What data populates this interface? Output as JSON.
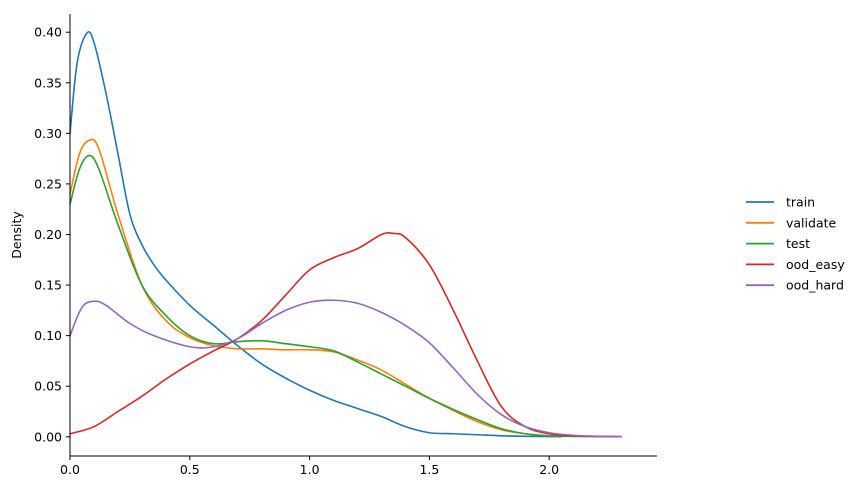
{
  "chart_data": {
    "type": "line",
    "title": "",
    "xlabel": "",
    "ylabel": "Density",
    "xlim": [
      0,
      2.45
    ],
    "ylim": [
      -0.019,
      0.418
    ],
    "xticks": [
      0.0,
      0.5,
      1.0,
      1.5,
      2.0
    ],
    "xtick_labels": [
      "0.0",
      "0.5",
      "1.0",
      "1.5",
      "2.0"
    ],
    "yticks": [
      0.0,
      0.05,
      0.1,
      0.15,
      0.2,
      0.25,
      0.3,
      0.35,
      0.4
    ],
    "ytick_labels": [
      "0.00",
      "0.05",
      "0.10",
      "0.15",
      "0.20",
      "0.25",
      "0.30",
      "0.35",
      "0.40"
    ],
    "grid": false,
    "legend_position": "right",
    "series": [
      {
        "name": "train",
        "color": "#1f77b4",
        "x": [
          0.0,
          0.03,
          0.07,
          0.1,
          0.15,
          0.2,
          0.25,
          0.3,
          0.35,
          0.4,
          0.5,
          0.6,
          0.7,
          0.8,
          0.9,
          1.0,
          1.1,
          1.2,
          1.3,
          1.4,
          1.5,
          1.6,
          1.7,
          1.8,
          1.9,
          2.0,
          2.05
        ],
        "y": [
          0.3,
          0.37,
          0.399,
          0.39,
          0.34,
          0.28,
          0.22,
          0.19,
          0.17,
          0.155,
          0.13,
          0.11,
          0.09,
          0.072,
          0.058,
          0.046,
          0.036,
          0.028,
          0.02,
          0.01,
          0.004,
          0.003,
          0.002,
          0.001,
          0.0005,
          0.0002,
          0.0001
        ]
      },
      {
        "name": "validate",
        "color": "#ff7f0e",
        "x": [
          0.0,
          0.04,
          0.08,
          0.12,
          0.2,
          0.3,
          0.4,
          0.5,
          0.6,
          0.7,
          0.8,
          0.9,
          1.0,
          1.1,
          1.2,
          1.3,
          1.4,
          1.5,
          1.6,
          1.7,
          1.8,
          1.9,
          2.0,
          2.1,
          2.2,
          2.3
        ],
        "y": [
          0.24,
          0.28,
          0.293,
          0.285,
          0.22,
          0.15,
          0.115,
          0.098,
          0.09,
          0.087,
          0.087,
          0.086,
          0.086,
          0.084,
          0.076,
          0.066,
          0.052,
          0.038,
          0.026,
          0.015,
          0.007,
          0.003,
          0.001,
          0.0005,
          0.0002,
          0.0001
        ]
      },
      {
        "name": "test",
        "color": "#2ca02c",
        "x": [
          0.0,
          0.04,
          0.08,
          0.12,
          0.2,
          0.3,
          0.4,
          0.5,
          0.6,
          0.7,
          0.8,
          0.9,
          1.0,
          1.1,
          1.2,
          1.3,
          1.4,
          1.5,
          1.6,
          1.7,
          1.8,
          1.9,
          2.0,
          2.1,
          2.2,
          2.3
        ],
        "y": [
          0.23,
          0.265,
          0.278,
          0.265,
          0.21,
          0.15,
          0.12,
          0.1,
          0.092,
          0.094,
          0.095,
          0.092,
          0.089,
          0.085,
          0.074,
          0.062,
          0.05,
          0.038,
          0.027,
          0.017,
          0.008,
          0.003,
          0.001,
          0.0005,
          0.0002,
          0.0001
        ]
      },
      {
        "name": "ood_easy",
        "color": "#d62728",
        "x": [
          0.0,
          0.1,
          0.2,
          0.3,
          0.4,
          0.5,
          0.6,
          0.7,
          0.8,
          0.9,
          1.0,
          1.1,
          1.2,
          1.3,
          1.35,
          1.4,
          1.5,
          1.6,
          1.7,
          1.8,
          1.9,
          2.0,
          2.1,
          2.2,
          2.3
        ],
        "y": [
          0.003,
          0.01,
          0.025,
          0.04,
          0.057,
          0.072,
          0.085,
          0.097,
          0.115,
          0.14,
          0.165,
          0.177,
          0.186,
          0.2,
          0.201,
          0.197,
          0.17,
          0.125,
          0.075,
          0.03,
          0.01,
          0.003,
          0.001,
          0.0005,
          0.0001
        ]
      },
      {
        "name": "ood_hard",
        "color": "#9467bd",
        "x": [
          0.0,
          0.05,
          0.1,
          0.15,
          0.25,
          0.35,
          0.5,
          0.6,
          0.7,
          0.8,
          0.9,
          1.0,
          1.1,
          1.2,
          1.3,
          1.4,
          1.5,
          1.6,
          1.7,
          1.8,
          1.9,
          2.0,
          2.1,
          2.2,
          2.3
        ],
        "y": [
          0.1,
          0.128,
          0.134,
          0.13,
          0.112,
          0.1,
          0.089,
          0.089,
          0.097,
          0.112,
          0.125,
          0.133,
          0.135,
          0.132,
          0.123,
          0.11,
          0.093,
          0.068,
          0.042,
          0.022,
          0.01,
          0.004,
          0.0015,
          0.0005,
          0.0001
        ]
      }
    ]
  }
}
